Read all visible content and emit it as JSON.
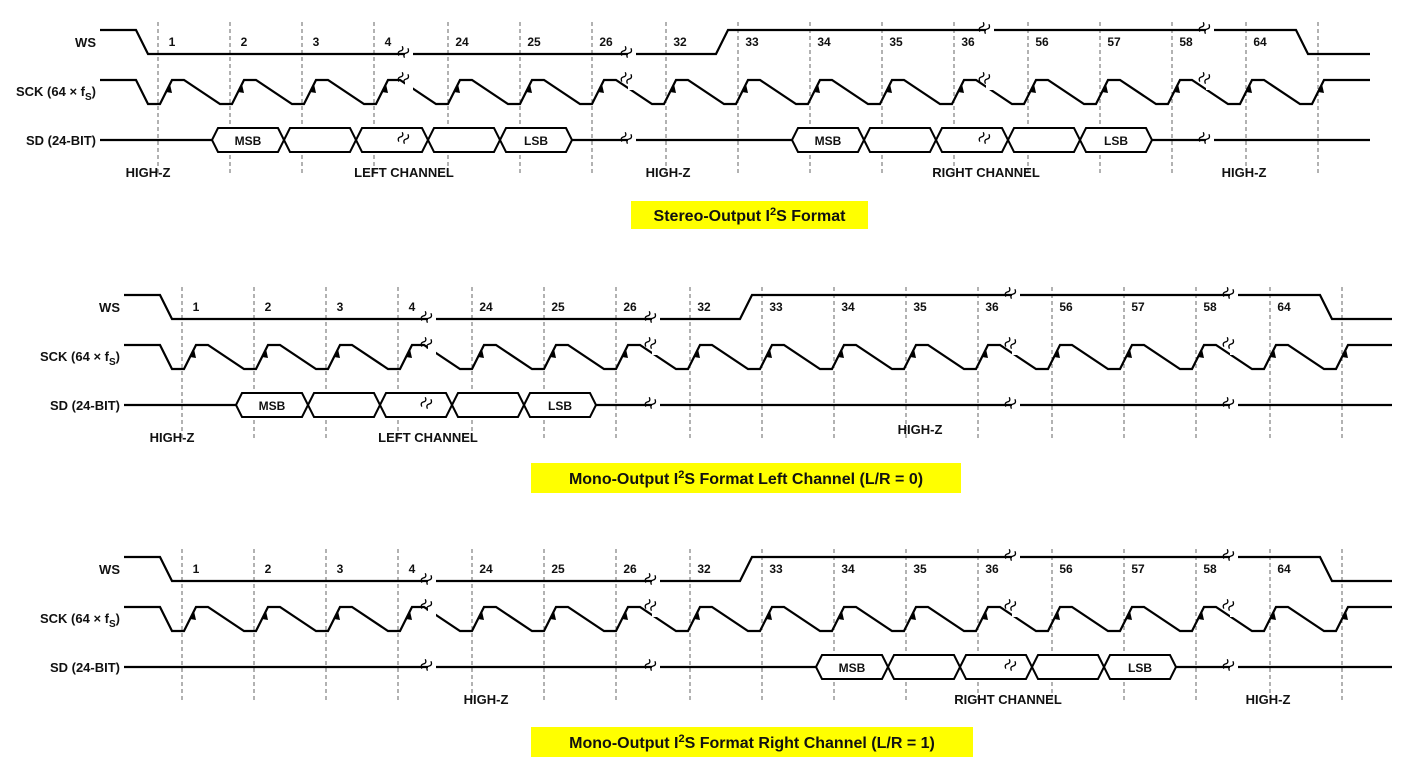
{
  "panels": [
    {
      "id": "stereo",
      "signal_labels": {
        "ws": "WS",
        "sck": "SCK (64 × f",
        "sck_sub": "S",
        "sck_close": ")",
        "sd": "SD (24-BIT)"
      },
      "bit_numbers": [
        "1",
        "2",
        "3",
        "4",
        "24",
        "25",
        "26",
        "32",
        "33",
        "34",
        "35",
        "36",
        "56",
        "57",
        "58",
        "64"
      ],
      "box_labels": {
        "left_msb": "MSB",
        "left_lsb": "LSB",
        "right_msb": "MSB",
        "right_lsb": "LSB"
      },
      "regions": [
        "HIGH-Z",
        "LEFT CHANNEL",
        "HIGH-Z",
        "RIGHT CHANNEL",
        "HIGH-Z"
      ],
      "caption_parts": [
        "Stereo-Output I",
        "2",
        "S Format"
      ]
    },
    {
      "id": "mono-left",
      "signal_labels": {
        "ws": "WS",
        "sck": "SCK (64 × f",
        "sck_sub": "S",
        "sck_close": ")",
        "sd": "SD (24-BIT)"
      },
      "bit_numbers": [
        "1",
        "2",
        "3",
        "4",
        "24",
        "25",
        "26",
        "32",
        "33",
        "34",
        "35",
        "36",
        "56",
        "57",
        "58",
        "64"
      ],
      "box_labels": {
        "left_msb": "MSB",
        "left_lsb": "LSB"
      },
      "regions": [
        "HIGH-Z",
        "LEFT CHANNEL",
        "HIGH-Z"
      ],
      "caption_parts": [
        "Mono-Output I",
        "2",
        "S Format Left Channel (L/R = 0)"
      ]
    },
    {
      "id": "mono-right",
      "signal_labels": {
        "ws": "WS",
        "sck": "SCK (64 × f",
        "sck_sub": "S",
        "sck_close": ")",
        "sd": "SD (24-BIT)"
      },
      "bit_numbers": [
        "1",
        "2",
        "3",
        "4",
        "24",
        "25",
        "26",
        "32",
        "33",
        "34",
        "35",
        "36",
        "56",
        "57",
        "58",
        "64"
      ],
      "box_labels": {
        "right_msb": "MSB",
        "right_lsb": "LSB"
      },
      "regions": [
        "HIGH-Z",
        "RIGHT CHANNEL",
        "HIGH-Z"
      ],
      "caption_parts": [
        "Mono-Output I",
        "2",
        "S Format Right Channel (L/R = 1)"
      ]
    }
  ],
  "colors": {
    "caption_highlight": "#ffff00",
    "line": "#000000"
  }
}
